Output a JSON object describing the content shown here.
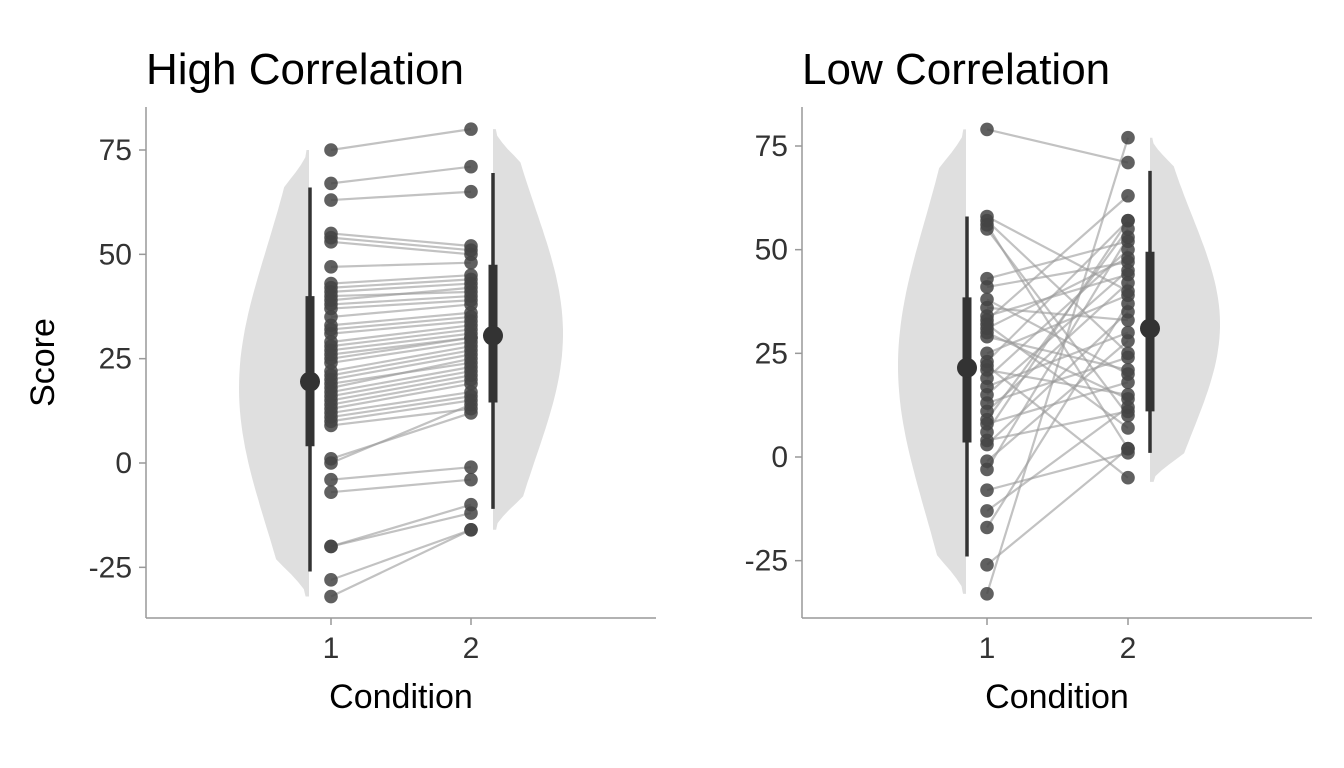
{
  "chart_data": [
    {
      "type": "scatter",
      "subtype": "paired raincloud (half-violin + interval + paired points)",
      "title": "High Correlation",
      "xlabel": "Condition",
      "ylabel": "Score",
      "categories": [
        "1",
        "2"
      ],
      "ylim": [
        -37,
        85
      ],
      "yticks": [
        75,
        50,
        25,
        0,
        -25
      ],
      "ytick_labels": [
        "75",
        "50",
        "25",
        "0",
        "-25"
      ],
      "grid": false,
      "pairs": [
        [
          75,
          80
        ],
        [
          67,
          71
        ],
        [
          63,
          65
        ],
        [
          55,
          52
        ],
        [
          54,
          51
        ],
        [
          53,
          50
        ],
        [
          47,
          48
        ],
        [
          43,
          45
        ],
        [
          42,
          44
        ],
        [
          41,
          43
        ],
        [
          40,
          41
        ],
        [
          39,
          42
        ],
        [
          38,
          40
        ],
        [
          37,
          39
        ],
        [
          35,
          38
        ],
        [
          33,
          36
        ],
        [
          32,
          35
        ],
        [
          31,
          34
        ],
        [
          29,
          33
        ],
        [
          28,
          32
        ],
        [
          27,
          31
        ],
        [
          26,
          30
        ],
        [
          25,
          30
        ],
        [
          24,
          29
        ],
        [
          22,
          28
        ],
        [
          21,
          27
        ],
        [
          20,
          26
        ],
        [
          19,
          24
        ],
        [
          18,
          25
        ],
        [
          17,
          23
        ],
        [
          16,
          22
        ],
        [
          15,
          21
        ],
        [
          14,
          20
        ],
        [
          13,
          19
        ],
        [
          12,
          17
        ],
        [
          11,
          16
        ],
        [
          10,
          15
        ],
        [
          9,
          13
        ],
        [
          1,
          12
        ],
        [
          0,
          14
        ],
        [
          -4,
          -1
        ],
        [
          -7,
          -4
        ],
        [
          -20,
          -10
        ],
        [
          -20,
          -12
        ],
        [
          -28,
          -16
        ],
        [
          -32,
          -16
        ]
      ],
      "interval_1": {
        "mean": 19.5,
        "inner": [
          4,
          40
        ],
        "outer": [
          -26,
          66
        ]
      },
      "interval_2": {
        "mean": 30.5,
        "inner": [
          14.5,
          47.5
        ],
        "outer": [
          -11,
          69.5
        ]
      },
      "violin_1_range": [
        -32,
        75
      ],
      "violin_2_range": [
        -16,
        80
      ]
    },
    {
      "type": "scatter",
      "subtype": "paired raincloud (half-violin + interval + paired points)",
      "title": "Low Correlation",
      "xlabel": "Condition",
      "ylabel": "",
      "categories": [
        "1",
        "2"
      ],
      "ylim": [
        -39,
        85
      ],
      "yticks": [
        75,
        50,
        25,
        0,
        -25
      ],
      "ytick_labels": [
        "75",
        "50",
        "25",
        "0",
        "-25"
      ],
      "grid": false,
      "pairs": [
        [
          79,
          71
        ],
        [
          58,
          40
        ],
        [
          57,
          25
        ],
        [
          56,
          2
        ],
        [
          55,
          10
        ],
        [
          43,
          52
        ],
        [
          41,
          47
        ],
        [
          38,
          20
        ],
        [
          36,
          33
        ],
        [
          34,
          44
        ],
        [
          33,
          63
        ],
        [
          32,
          7
        ],
        [
          31,
          48
        ],
        [
          30,
          14
        ],
        [
          29,
          21
        ],
        [
          25,
          39
        ],
        [
          23,
          57
        ],
        [
          21,
          15
        ],
        [
          19,
          50
        ],
        [
          17,
          30
        ],
        [
          15,
          45
        ],
        [
          13,
          24
        ],
        [
          11,
          42
        ],
        [
          8,
          18
        ],
        [
          6,
          57
        ],
        [
          4,
          11
        ],
        [
          3,
          35
        ],
        [
          -1,
          28
        ],
        [
          -3,
          53
        ],
        [
          -8,
          1
        ],
        [
          -13,
          12
        ],
        [
          -17,
          37
        ],
        [
          -26,
          2
        ],
        [
          -33,
          77
        ],
        [
          22,
          -5
        ],
        [
          9,
          55
        ]
      ],
      "interval_1": {
        "mean": 21.5,
        "inner": [
          3.5,
          38.5
        ],
        "outer": [
          -24,
          58
        ]
      },
      "interval_2": {
        "mean": 31,
        "inner": [
          11,
          49.5
        ],
        "outer": [
          1,
          69
        ]
      },
      "violin_1_range": [
        -33,
        79
      ],
      "violin_2_range": [
        -6,
        77
      ]
    }
  ]
}
